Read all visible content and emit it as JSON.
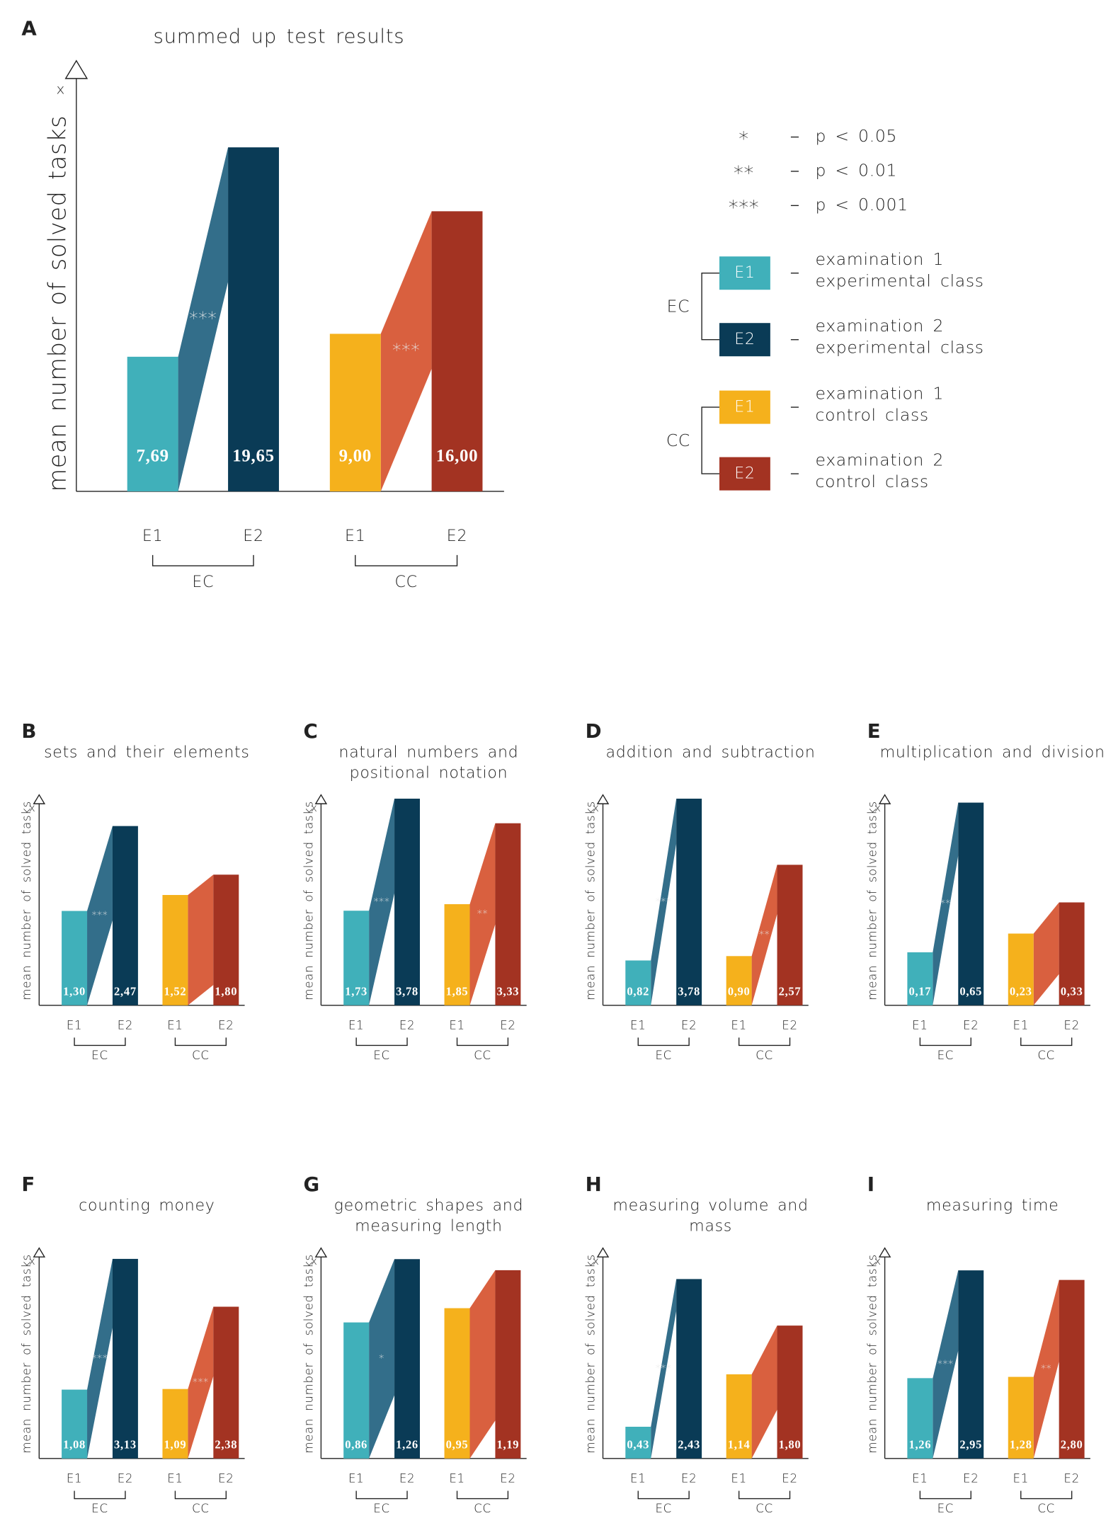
{
  "chart_data": [
    {
      "type": "bar",
      "panel": "A",
      "title": [
        "summed up test results"
      ],
      "ylabel": "mean number of solved tasks",
      "ytop_label": "x",
      "categories": [
        "E1",
        "E2",
        "E1",
        "E2"
      ],
      "groups": [
        {
          "name": "EC",
          "annotation": "***",
          "connector_color": "#336e8a"
        },
        {
          "name": "CC",
          "annotation": "***",
          "connector_color": "#d9603f"
        }
      ],
      "values": [
        7.69,
        19.65,
        9.0,
        16.0
      ],
      "value_labels": [
        "7,69",
        "19,65",
        "9,00",
        "16,00"
      ],
      "colors": [
        "#40b0ba",
        "#0a3b56",
        "#f5b11c",
        "#a33322"
      ],
      "ylim": [
        0,
        24.6
      ]
    },
    {
      "type": "bar",
      "panel": "B",
      "title": [
        "sets and their elements"
      ],
      "ylabel": "mean number of solved tasks",
      "ytop_label": "x",
      "categories": [
        "E1",
        "E2",
        "E1",
        "E2"
      ],
      "groups": [
        {
          "name": "EC",
          "annotation": "***",
          "connector_color": "#336e8a"
        },
        {
          "name": "CC",
          "connector_color": "#d9603f"
        }
      ],
      "values": [
        1.3,
        2.47,
        1.52,
        1.8
      ],
      "value_labels": [
        "1,30",
        "2,47",
        "1,52",
        "1,80"
      ],
      "colors": [
        "#40b0ba",
        "#0a3b56",
        "#f5b11c",
        "#a33322"
      ],
      "ylim": [
        0,
        2.9
      ]
    },
    {
      "type": "bar",
      "panel": "C",
      "title": [
        "natural numbers and",
        "positional notation"
      ],
      "ylabel": "mean number of solved tasks",
      "ytop_label": "x",
      "categories": [
        "E1",
        "E2",
        "E1",
        "E2"
      ],
      "groups": [
        {
          "name": "EC",
          "annotation": "***",
          "connector_color": "#336e8a"
        },
        {
          "name": "CC",
          "annotation": "**",
          "connector_color": "#d9603f"
        }
      ],
      "values": [
        1.73,
        3.78,
        1.85,
        3.33
      ],
      "value_labels": [
        "1,73",
        "3,78",
        "1,85",
        "3,33"
      ],
      "colors": [
        "#40b0ba",
        "#0a3b56",
        "#f5b11c",
        "#a33322"
      ],
      "ylim": [
        0,
        3.85
      ]
    },
    {
      "type": "bar",
      "panel": "D",
      "title": [
        "addition and subtraction"
      ],
      "ylabel": "mean number of solved tasks",
      "ytop_label": "x",
      "categories": [
        "E1",
        "E2",
        "E1",
        "E2"
      ],
      "groups": [
        {
          "name": "EC",
          "annotation": "***",
          "connector_color": "#336e8a"
        },
        {
          "name": "CC",
          "annotation": "**",
          "connector_color": "#d9603f"
        }
      ],
      "values": [
        0.82,
        3.78,
        0.9,
        2.57
      ],
      "value_labels": [
        "0,82",
        "3,78",
        "0,90",
        "2,57"
      ],
      "colors": [
        "#40b0ba",
        "#0a3b56",
        "#f5b11c",
        "#a33322"
      ],
      "ylim": [
        0,
        3.85
      ]
    },
    {
      "type": "bar",
      "panel": "E",
      "title": [
        "multiplication and division"
      ],
      "ylabel": "mean number of solved tasks",
      "ytop_label": "x",
      "categories": [
        "E1",
        "E2",
        "E1",
        "E2"
      ],
      "groups": [
        {
          "name": "EC",
          "annotation": "**",
          "connector_color": "#336e8a"
        },
        {
          "name": "CC",
          "connector_color": "#d9603f"
        }
      ],
      "values": [
        0.17,
        0.65,
        0.23,
        0.33
      ],
      "value_labels": [
        "0,17",
        "0,65",
        "0,23",
        "0,33"
      ],
      "colors": [
        "#40b0ba",
        "#0a3b56",
        "#f5b11c",
        "#a33322"
      ],
      "ylim": [
        0,
        0.675
      ]
    },
    {
      "type": "bar",
      "panel": "F",
      "title": [
        "counting money"
      ],
      "ylabel": "mean number of solved tasks",
      "ytop_label": "x",
      "categories": [
        "E1",
        "E2",
        "E1",
        "E2"
      ],
      "groups": [
        {
          "name": "EC",
          "annotation": "***",
          "connector_color": "#336e8a"
        },
        {
          "name": "CC",
          "annotation": "***",
          "connector_color": "#d9603f"
        }
      ],
      "values": [
        1.08,
        3.13,
        1.09,
        2.38
      ],
      "value_labels": [
        "1,08",
        "3,13",
        "1,09",
        "2,38"
      ],
      "colors": [
        "#40b0ba",
        "#0a3b56",
        "#f5b11c",
        "#a33322"
      ],
      "ylim": [
        0,
        3.3
      ]
    },
    {
      "type": "bar",
      "panel": "G",
      "title": [
        "geometric shapes and",
        "measuring length"
      ],
      "ylabel": "mean number of solved tasks",
      "ytop_label": "x",
      "categories": [
        "E1",
        "E2",
        "E1",
        "E2"
      ],
      "groups": [
        {
          "name": "EC",
          "annotation": "*",
          "connector_color": "#336e8a"
        },
        {
          "name": "CC",
          "connector_color": "#d9603f"
        }
      ],
      "values": [
        0.86,
        1.26,
        0.95,
        1.19
      ],
      "value_labels": [
        "0,86",
        "1,26",
        "0,95",
        "1,19"
      ],
      "colors": [
        "#40b0ba",
        "#0a3b56",
        "#f5b11c",
        "#a33322"
      ],
      "ylim": [
        0,
        1.33
      ]
    },
    {
      "type": "bar",
      "panel": "H",
      "title": [
        "measuring volume and",
        "mass"
      ],
      "ylabel": "mean number of solved tasks",
      "ytop_label": "x",
      "categories": [
        "E1",
        "E2",
        "E1",
        "E2"
      ],
      "groups": [
        {
          "name": "EC",
          "annotation": "***",
          "connector_color": "#336e8a"
        },
        {
          "name": "CC",
          "connector_color": "#d9603f"
        }
      ],
      "values": [
        0.43,
        2.43,
        1.14,
        1.8
      ],
      "value_labels": [
        "0,43",
        "2,43",
        "1,14",
        "1,80"
      ],
      "colors": [
        "#40b0ba",
        "#0a3b56",
        "#f5b11c",
        "#a33322"
      ],
      "ylim": [
        0,
        2.85
      ]
    },
    {
      "type": "bar",
      "panel": "I",
      "title": [
        "measuring time"
      ],
      "ylabel": "mean number of solved tasks",
      "ytop_label": "x",
      "categories": [
        "E1",
        "E2",
        "E1",
        "E2"
      ],
      "groups": [
        {
          "name": "EC",
          "annotation": "***",
          "connector_color": "#336e8a"
        },
        {
          "name": "CC",
          "annotation": "**",
          "connector_color": "#d9603f"
        }
      ],
      "values": [
        1.26,
        2.95,
        1.28,
        2.8
      ],
      "value_labels": [
        "1,26",
        "2,95",
        "1,28",
        "2,80"
      ],
      "colors": [
        "#40b0ba",
        "#0a3b56",
        "#f5b11c",
        "#a33322"
      ],
      "ylim": [
        0,
        3.3
      ]
    }
  ],
  "legend": {
    "significance": [
      {
        "symbol": "*",
        "text": "p < 0.05"
      },
      {
        "symbol": "**",
        "text": "p < 0.01"
      },
      {
        "symbol": "***",
        "text": "p < 0.001"
      }
    ],
    "groups": [
      {
        "name": "EC",
        "items": [
          {
            "label": "E1",
            "color": "#40b0ba",
            "text": [
              "examination 1",
              "experimental class"
            ]
          },
          {
            "label": "E2",
            "color": "#0a3b56",
            "text": [
              "examination 2",
              "experimental class"
            ]
          }
        ]
      },
      {
        "name": "CC",
        "items": [
          {
            "label": "E1",
            "color": "#f5b11c",
            "text": [
              "examination 1",
              "control class"
            ]
          },
          {
            "label": "E2",
            "color": "#a33322",
            "text": [
              "examination 2",
              "control class"
            ]
          }
        ]
      }
    ]
  }
}
